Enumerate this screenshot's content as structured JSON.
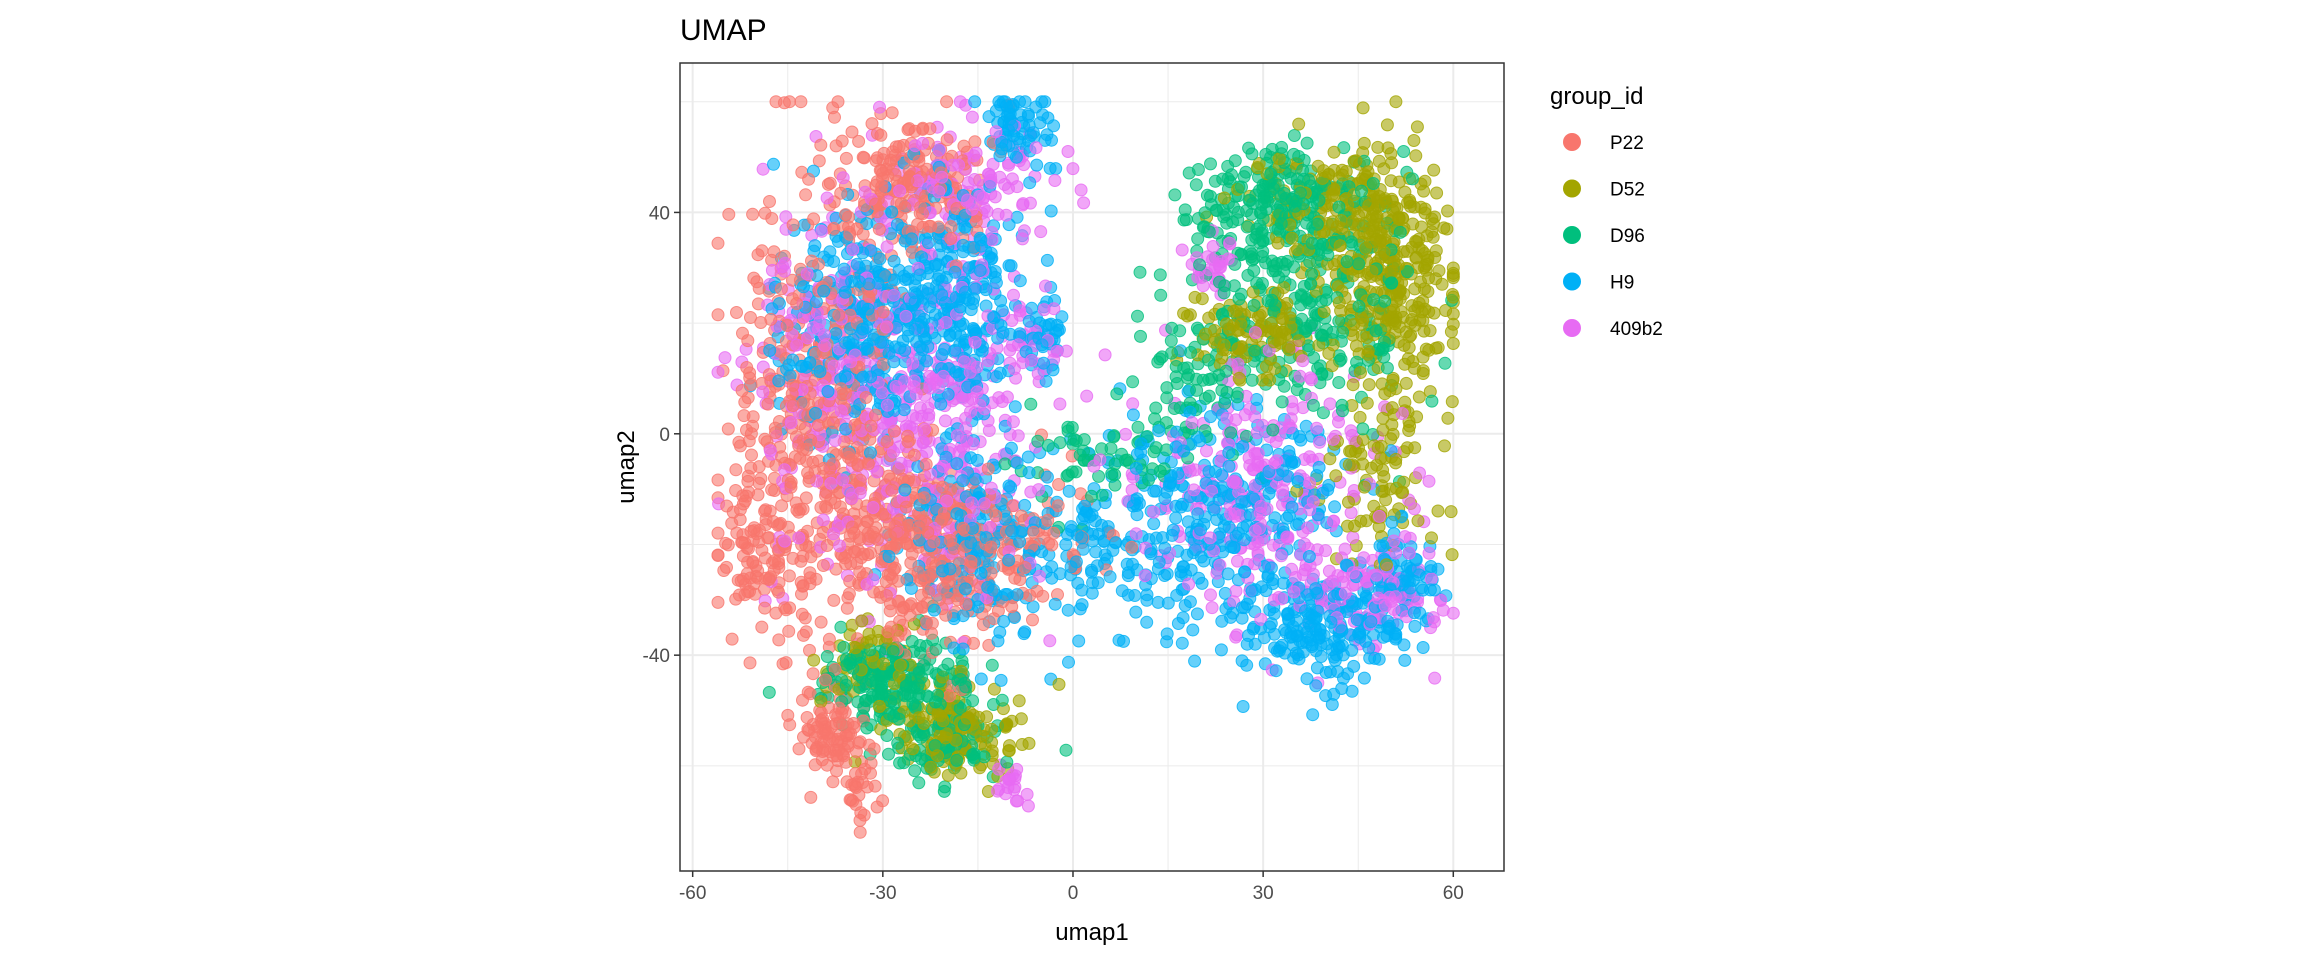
{
  "chart_data": {
    "type": "scatter",
    "title": "UMAP",
    "xlabel": "umap1",
    "ylabel": "umap2",
    "xlim": [
      -62,
      68
    ],
    "ylim": [
      -79,
      67
    ],
    "xticks": [
      -60,
      -30,
      0,
      30,
      60
    ],
    "yticks": [
      -40,
      0,
      40
    ],
    "grid": true,
    "point_alpha": 0.6,
    "legend": {
      "title": "group_id",
      "position": "right"
    },
    "series": [
      {
        "name": "P22",
        "color": "#F8766D"
      },
      {
        "name": "D52",
        "color": "#A3A500"
      },
      {
        "name": "D96",
        "color": "#00BF7D"
      },
      {
        "name": "H9",
        "color": "#00B0F6"
      },
      {
        "name": "409b2",
        "color": "#E76BF3"
      }
    ],
    "clusters": [
      {
        "group": "P22",
        "cx": -40,
        "cy": 5,
        "sx": 7,
        "sy": 20,
        "n": 450
      },
      {
        "group": "P22",
        "cx": -25,
        "cy": -20,
        "sx": 8,
        "sy": 10,
        "n": 350
      },
      {
        "group": "P22",
        "cx": -25,
        "cy": 45,
        "sx": 6,
        "sy": 6,
        "n": 200
      },
      {
        "group": "P22",
        "cx": -50,
        "cy": -20,
        "sx": 3,
        "sy": 6,
        "n": 80
      },
      {
        "group": "P22",
        "cx": -38,
        "cy": -55,
        "sx": 3,
        "sy": 4,
        "n": 90
      },
      {
        "group": "P22",
        "cx": -34,
        "cy": -66,
        "sx": 1.5,
        "sy": 4,
        "n": 25
      },
      {
        "group": "P22",
        "cx": -8,
        "cy": -20,
        "sx": 6,
        "sy": 6,
        "n": 80
      },
      {
        "group": "H9",
        "cx": -33,
        "cy": 20,
        "sx": 7,
        "sy": 10,
        "n": 350
      },
      {
        "group": "H9",
        "cx": -18,
        "cy": 25,
        "sx": 5,
        "sy": 12,
        "n": 250
      },
      {
        "group": "H9",
        "cx": -9,
        "cy": 55,
        "sx": 3,
        "sy": 4,
        "n": 70
      },
      {
        "group": "H9",
        "cx": -5,
        "cy": 17,
        "sx": 2,
        "sy": 3,
        "n": 40
      },
      {
        "group": "H9",
        "cx": -15,
        "cy": -20,
        "sx": 7,
        "sy": 10,
        "n": 200
      },
      {
        "group": "H9",
        "cx": 5,
        "cy": -20,
        "sx": 7,
        "sy": 8,
        "n": 120
      },
      {
        "group": "H9",
        "cx": 25,
        "cy": -15,
        "sx": 9,
        "sy": 10,
        "n": 300
      },
      {
        "group": "H9",
        "cx": 40,
        "cy": -35,
        "sx": 6,
        "sy": 5,
        "n": 200
      },
      {
        "group": "H9",
        "cx": 52,
        "cy": -27,
        "sx": 3,
        "sy": 5,
        "n": 80
      },
      {
        "group": "409b2",
        "cx": -35,
        "cy": 10,
        "sx": 8,
        "sy": 15,
        "n": 300
      },
      {
        "group": "409b2",
        "cx": -20,
        "cy": 0,
        "sx": 7,
        "sy": 15,
        "n": 250
      },
      {
        "group": "409b2",
        "cx": -15,
        "cy": 45,
        "sx": 6,
        "sy": 7,
        "n": 120
      },
      {
        "group": "409b2",
        "cx": 30,
        "cy": -10,
        "sx": 10,
        "sy": 12,
        "n": 280
      },
      {
        "group": "409b2",
        "cx": 48,
        "cy": -28,
        "sx": 6,
        "sy": 5,
        "n": 100
      },
      {
        "group": "409b2",
        "cx": 22,
        "cy": 30,
        "sx": 2,
        "sy": 3,
        "n": 30
      },
      {
        "group": "409b2",
        "cx": -10,
        "cy": -63,
        "sx": 1.5,
        "sy": 2,
        "n": 20
      },
      {
        "group": "409b2",
        "cx": -7,
        "cy": 18,
        "sx": 3,
        "sy": 4,
        "n": 30
      },
      {
        "group": "D96",
        "cx": 33,
        "cy": 40,
        "sx": 7,
        "sy": 6,
        "n": 250
      },
      {
        "group": "D96",
        "cx": 38,
        "cy": 20,
        "sx": 8,
        "sy": 10,
        "n": 200
      },
      {
        "group": "D96",
        "cx": 20,
        "cy": 10,
        "sx": 5,
        "sy": 6,
        "n": 80
      },
      {
        "group": "D96",
        "cx": -28,
        "cy": -45,
        "sx": 6,
        "sy": 4,
        "n": 200
      },
      {
        "group": "D96",
        "cx": -20,
        "cy": -55,
        "sx": 5,
        "sy": 4,
        "n": 100
      },
      {
        "group": "D96",
        "cx": 5,
        "cy": -5,
        "sx": 7,
        "sy": 4,
        "n": 60
      },
      {
        "group": "D52",
        "cx": 50,
        "cy": 30,
        "sx": 5,
        "sy": 10,
        "n": 350
      },
      {
        "group": "D52",
        "cx": 28,
        "cy": 18,
        "sx": 5,
        "sy": 4,
        "n": 120
      },
      {
        "group": "D52",
        "cx": 40,
        "cy": 42,
        "sx": 7,
        "sy": 5,
        "n": 120
      },
      {
        "group": "D52",
        "cx": 48,
        "cy": -5,
        "sx": 5,
        "sy": 10,
        "n": 100
      },
      {
        "group": "D52",
        "cx": -18,
        "cy": -53,
        "sx": 5,
        "sy": 4,
        "n": 150
      },
      {
        "group": "D52",
        "cx": -32,
        "cy": -42,
        "sx": 4,
        "sy": 4,
        "n": 60
      }
    ]
  }
}
